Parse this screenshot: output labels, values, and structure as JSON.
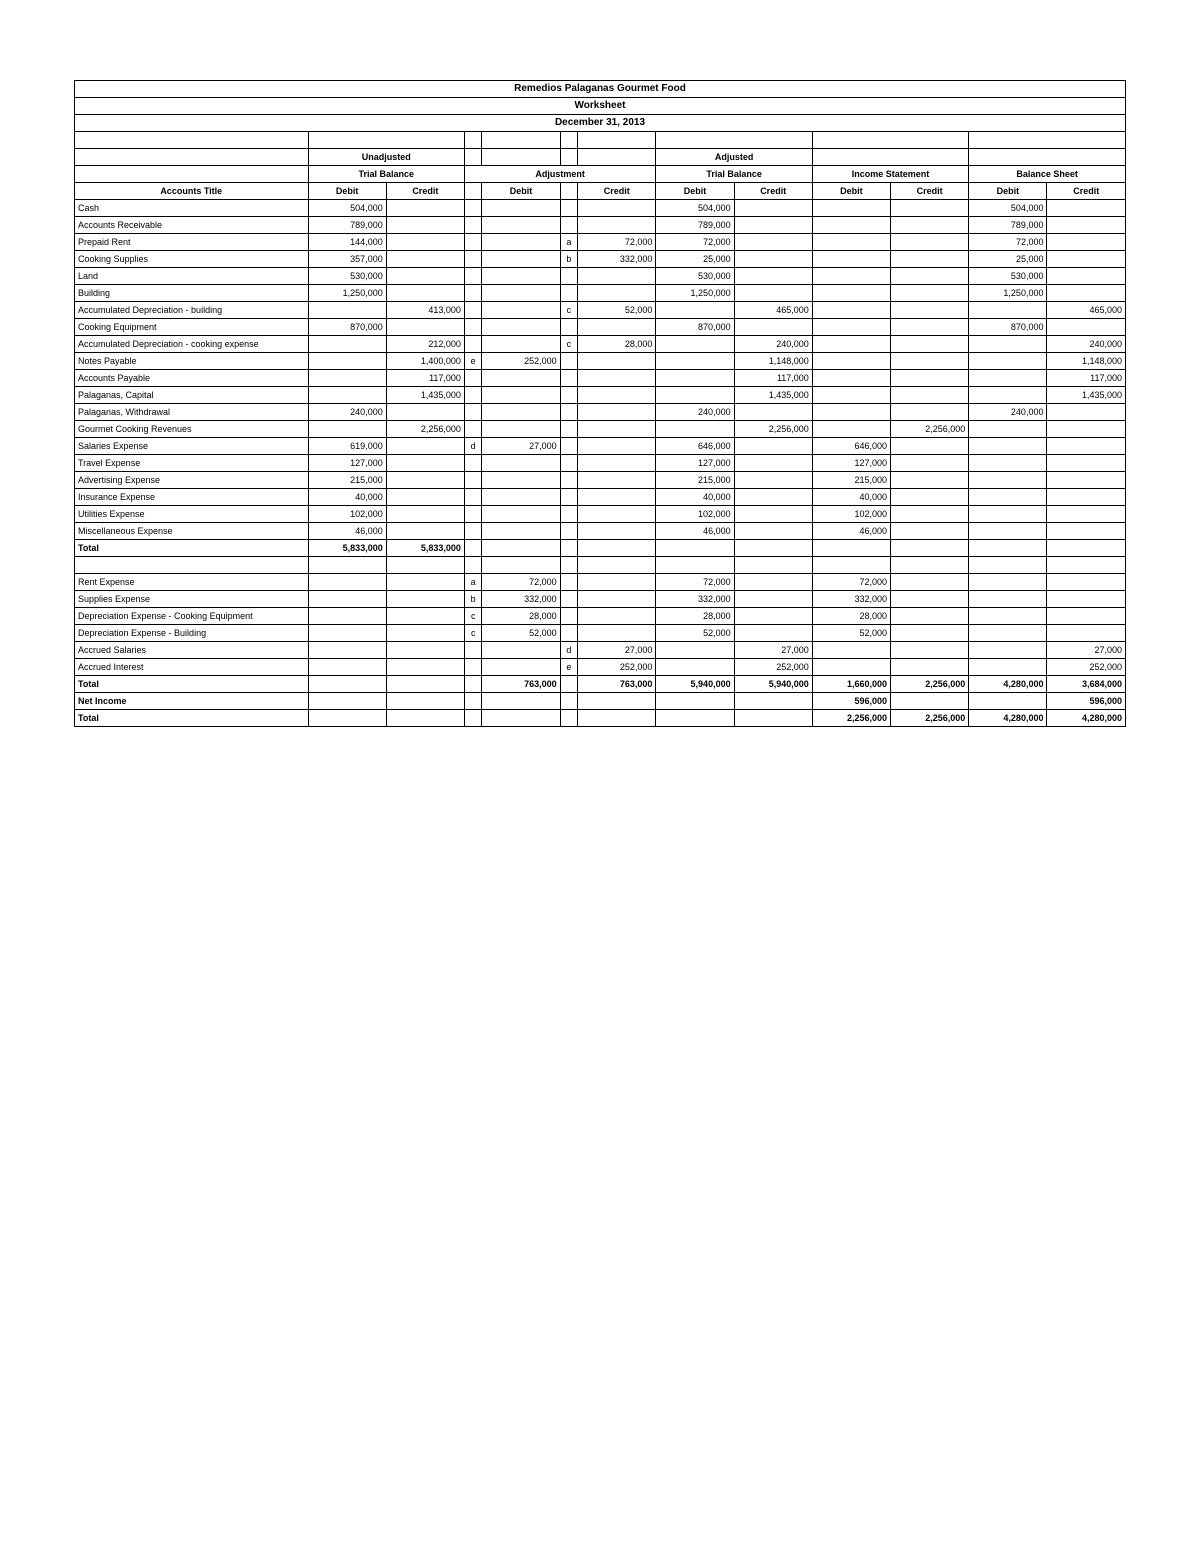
{
  "header": {
    "company": "Remedios Palaganas Gourmet Food",
    "title": "Worksheet",
    "date": "December 31, 2013"
  },
  "section_headers": {
    "unadjusted": "Unadjusted",
    "trial_balance": "Trial Balance",
    "adjustment": "Adjustment",
    "adjusted": "Adjusted",
    "income_statement": "Income Statement",
    "balance_sheet": "Balance Sheet",
    "accounts_title": "Accounts Title",
    "debit": "Debit",
    "credit": "Credit"
  },
  "rows": [
    {
      "t": "Cash",
      "utb_d": "504,000",
      "atb_d": "504,000",
      "bs_d": "504,000"
    },
    {
      "t": "Accounts Receivable",
      "utb_d": "789,000",
      "atb_d": "789,000",
      "bs_d": "789,000"
    },
    {
      "t": "Prepaid Rent",
      "utb_d": "144,000",
      "adj_cr_ref": "a",
      "adj_c": "72,000",
      "atb_d": "72,000",
      "bs_d": "72,000"
    },
    {
      "t": "Cooking Supplies",
      "utb_d": "357,000",
      "adj_cr_ref": "b",
      "adj_c": "332,000",
      "atb_d": "25,000",
      "bs_d": "25,000"
    },
    {
      "t": "Land",
      "utb_d": "530,000",
      "atb_d": "530,000",
      "bs_d": "530,000"
    },
    {
      "t": "Building",
      "utb_d": "1,250,000",
      "atb_d": "1,250,000",
      "bs_d": "1,250,000"
    },
    {
      "t": "Accumulated Depreciation - building",
      "utb_c": "413,000",
      "adj_cr_ref": "c",
      "adj_c": "52,000",
      "atb_c": "465,000",
      "bs_c": "465,000"
    },
    {
      "t": "Cooking Equipment",
      "utb_d": "870,000",
      "atb_d": "870,000",
      "bs_d": "870,000"
    },
    {
      "t": "Accumulated Depreciation - cooking expense",
      "utb_c": "212,000",
      "adj_cr_ref": "c",
      "adj_c": "28,000",
      "atb_c": "240,000",
      "bs_c": "240,000"
    },
    {
      "t": "Notes Payable",
      "utb_c": "1,400,000",
      "adj_dr_ref": "e",
      "adj_d": "252,000",
      "atb_c": "1,148,000",
      "bs_c": "1,148,000"
    },
    {
      "t": "Accounts Payable",
      "utb_c": "117,000",
      "atb_c": "117,000",
      "bs_c": "117,000"
    },
    {
      "t": "Palaganas, Capital",
      "utb_c": "1,435,000",
      "atb_c": "1,435,000",
      "bs_c": "1,435,000"
    },
    {
      "t": "Palaganas, Withdrawal",
      "utb_d": "240,000",
      "atb_d": "240,000",
      "bs_d": "240,000"
    },
    {
      "t": "Gourmet Cooking Revenues",
      "utb_c": "2,256,000",
      "atb_c": "2,256,000",
      "is_c": "2,256,000"
    },
    {
      "t": "Salaries Expense",
      "utb_d": "619,000",
      "adj_dr_ref": "d",
      "adj_d": "27,000",
      "atb_d": "646,000",
      "is_d": "646,000"
    },
    {
      "t": "Travel Expense",
      "utb_d": "127,000",
      "atb_d": "127,000",
      "is_d": "127,000"
    },
    {
      "t": "Advertising Expense",
      "utb_d": "215,000",
      "atb_d": "215,000",
      "is_d": "215,000"
    },
    {
      "t": "Insurance Expense",
      "utb_d": "40,000",
      "atb_d": "40,000",
      "is_d": "40,000"
    },
    {
      "t": "Utilities Expense",
      "utb_d": "102,000",
      "atb_d": "102,000",
      "is_d": "102,000"
    },
    {
      "t": "Miscellaneous Expense",
      "utb_d": "46,000",
      "atb_d": "46,000",
      "is_d": "46,000"
    },
    {
      "t": "Total",
      "bold": true,
      "utb_d": "5,833,000",
      "utb_c": "5,833,000"
    },
    {
      "blank": true
    },
    {
      "t": "Rent Expense",
      "adj_dr_ref": "a",
      "adj_d": "72,000",
      "atb_d": "72,000",
      "is_d": "72,000"
    },
    {
      "t": "Supplies Expense",
      "adj_dr_ref": "b",
      "adj_d": "332,000",
      "atb_d": "332,000",
      "is_d": "332,000"
    },
    {
      "t": "Depreciation Expense - Cooking Equipment",
      "adj_dr_ref": "c",
      "adj_d": "28,000",
      "atb_d": "28,000",
      "is_d": "28,000"
    },
    {
      "t": "Depreciation Expense - Building",
      "adj_dr_ref": "c",
      "adj_d": "52,000",
      "atb_d": "52,000",
      "is_d": "52,000"
    },
    {
      "t": "Accrued Salaries",
      "adj_cr_ref": "d",
      "adj_c": "27,000",
      "atb_c": "27,000",
      "bs_c": "27,000"
    },
    {
      "t": "Accrued Interest",
      "adj_cr_ref": "e",
      "adj_c": "252,000",
      "atb_c": "252,000",
      "bs_c": "252,000"
    },
    {
      "t": "Total",
      "bold": true,
      "adj_d": "763,000",
      "adj_c": "763,000",
      "atb_d": "5,940,000",
      "atb_c": "5,940,000",
      "is_d": "1,660,000",
      "is_c": "2,256,000",
      "bs_d": "4,280,000",
      "bs_c": "3,684,000"
    },
    {
      "t": "Net Income",
      "bold": true,
      "is_d": "596,000",
      "bs_c": "596,000"
    },
    {
      "t": "Total",
      "bold": true,
      "is_d": "2,256,000",
      "is_c": "2,256,000",
      "bs_d": "4,280,000",
      "bs_c": "4,280,000"
    }
  ]
}
